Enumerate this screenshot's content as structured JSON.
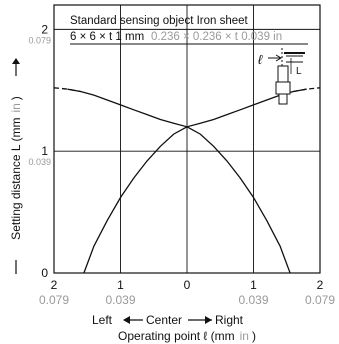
{
  "chart_data": {
    "type": "line",
    "title": "Standard sensing object Iron sheet",
    "subtitle": "6 × 6 × t 1 mm",
    "subtitle_in": "0.236 × 0.236 × t 0.039 in",
    "ylabel": "Setting distance L (mm",
    "ylabel_unit": "in",
    "ylabel_close": ")",
    "xlabel_left": "Left",
    "xlabel_center": "Center",
    "xlabel_right": "Right",
    "xlabel": "Operating point ℓ (mm",
    "xlabel_unit": "in",
    "xlabel_close": ")",
    "inset_l": "ℓ",
    "inset_L": "L",
    "xlim": [
      -2,
      2
    ],
    "ylim": [
      0,
      2.2
    ],
    "grid": true,
    "x_ticks": [
      {
        "v": -2,
        "mm": "2",
        "in": "0.079"
      },
      {
        "v": -1,
        "mm": "1",
        "in": "0.039"
      },
      {
        "v": 0,
        "mm": "0",
        "in": ""
      },
      {
        "v": 1,
        "mm": "1",
        "in": "0.039"
      },
      {
        "v": 2,
        "mm": "2",
        "in": "0.079"
      }
    ],
    "y_ticks": [
      {
        "v": 0,
        "mm": "0",
        "in": ""
      },
      {
        "v": 1,
        "mm": "1",
        "in": "0.039"
      },
      {
        "v": 2,
        "mm": "2",
        "in": "0.079"
      }
    ],
    "series": [
      {
        "color": "#111111",
        "points": [
          [
            -2.0,
            1.52
          ],
          [
            -1.8,
            1.51
          ],
          [
            -1.6,
            1.49
          ],
          [
            -1.4,
            1.46
          ],
          [
            -1.2,
            1.42
          ],
          [
            -1.0,
            1.38
          ],
          [
            -0.8,
            1.34
          ],
          [
            -0.6,
            1.3
          ],
          [
            -0.4,
            1.26
          ],
          [
            -0.2,
            1.23
          ],
          [
            0.0,
            1.2
          ],
          [
            0.2,
            1.14
          ],
          [
            0.4,
            1.04
          ],
          [
            0.6,
            0.92
          ],
          [
            0.8,
            0.78
          ],
          [
            1.0,
            0.62
          ],
          [
            1.2,
            0.43
          ],
          [
            1.4,
            0.22
          ],
          [
            1.55,
            0.0
          ]
        ],
        "dashed_until_x": -1.55
      },
      {
        "color": "#111111",
        "points": [
          [
            -1.55,
            0.0
          ],
          [
            -1.4,
            0.22
          ],
          [
            -1.2,
            0.43
          ],
          [
            -1.0,
            0.62
          ],
          [
            -0.8,
            0.78
          ],
          [
            -0.6,
            0.92
          ],
          [
            -0.4,
            1.04
          ],
          [
            -0.2,
            1.14
          ],
          [
            0.0,
            1.2
          ],
          [
            0.2,
            1.23
          ],
          [
            0.4,
            1.26
          ],
          [
            0.6,
            1.3
          ],
          [
            0.8,
            1.34
          ],
          [
            1.0,
            1.38
          ],
          [
            1.2,
            1.42
          ],
          [
            1.4,
            1.46
          ],
          [
            1.6,
            1.49
          ],
          [
            1.8,
            1.51
          ],
          [
            2.0,
            1.52
          ]
        ],
        "dashed_from_x": 1.55
      }
    ]
  }
}
